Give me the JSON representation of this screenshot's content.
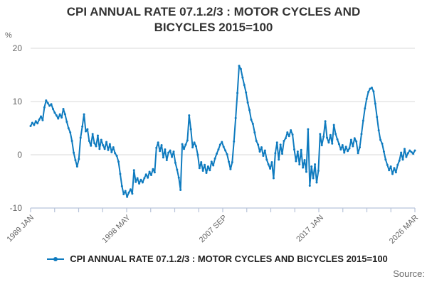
{
  "title": "CPI ANNUAL RATE 07.1.2/3 : MOTOR CYCLES AND BICYCLES 2015=100",
  "unit_label": "%",
  "source_label": "Source:",
  "legend": {
    "label": "CPI ANNUAL RATE 07.1.2/3 : MOTOR CYCLES AND BICYCLES 2015=100"
  },
  "colors": {
    "line": "#0f7bbf",
    "grid": "#d9d9d9",
    "axis": "#b7c3d9",
    "tick_label": "#666666",
    "title_text": "#333333"
  },
  "chart_data": {
    "type": "line",
    "title": "CPI ANNUAL RATE 07.1.2/3 : MOTOR CYCLES AND BICYCLES 2015=100",
    "ylabel": "%",
    "ylim": [
      -10,
      20
    ],
    "yticks": [
      -10,
      0,
      10,
      20
    ],
    "grid": "horizontal",
    "legend_position": "bottom",
    "x_tick_labels": [
      "1989 JAN",
      "1998 MAY",
      "2007 SEP",
      "2017 JAN",
      "2026 MAR"
    ],
    "x_tick_months": [
      0,
      112,
      224,
      336,
      446
    ],
    "x_minor_tick_intervals": 16,
    "total_months": 446,
    "sample_interval_months": 2,
    "x_start": "1989 JAN",
    "x_end": "2026 MAR",
    "series_name": "CPI ANNUAL RATE 07.1.2/3 : MOTOR CYCLES AND BICYCLES 2015=100",
    "values": [
      5.4,
      6.0,
      5.6,
      6.3,
      5.9,
      6.6,
      7.2,
      6.5,
      8.9,
      10.2,
      9.7,
      9.2,
      9.5,
      8.6,
      7.9,
      7.4,
      6.8,
      7.6,
      7.0,
      8.6,
      7.6,
      6.2,
      5.0,
      4.2,
      2.6,
      0.4,
      -1.0,
      -2.2,
      -0.8,
      3.2,
      5.3,
      7.6,
      4.4,
      4.8,
      2.6,
      1.7,
      3.9,
      2.2,
      1.6,
      3.6,
      1.1,
      2.8,
      1.8,
      1.1,
      2.4,
      0.9,
      2.0,
      0.5,
      1.4,
      0.3,
      -0.2,
      -1.3,
      -3.6,
      -5.9,
      -7.4,
      -6.8,
      -7.9,
      -7.1,
      -6.5,
      -7.3,
      -2.9,
      -5.1,
      -4.4,
      -5.4,
      -4.7,
      -5.2,
      -4.4,
      -3.7,
      -4.3,
      -3.2,
      -3.8,
      -2.7,
      -3.3,
      1.3,
      2.3,
      0.7,
      1.8,
      -0.5,
      1.0,
      -1.0,
      0.4,
      0.8,
      -0.4,
      0.6,
      -1.5,
      -2.8,
      -4.3,
      -6.6,
      2.0,
      1.1,
      1.9,
      2.7,
      7.4,
      4.8,
      1.4,
      2.3,
      1.6,
      0.0,
      -2.5,
      -1.4,
      -3.0,
      -1.9,
      -3.4,
      -2.2,
      -2.9,
      -1.3,
      -2.0,
      -0.7,
      0.2,
      1.0,
      1.9,
      2.4,
      1.5,
      0.8,
      0.1,
      -1.3,
      -2.7,
      -1.4,
      2.5,
      6.9,
      11.6,
      16.7,
      16.1,
      14.5,
      13.1,
      11.7,
      9.8,
      8.4,
      6.6,
      5.8,
      4.2,
      2.6,
      1.9,
      0.6,
      1.4,
      -0.2,
      0.8,
      -0.9,
      -1.8,
      -2.6,
      -1.4,
      -4.4,
      0.3,
      2.3,
      -0.9,
      1.9,
      0.2,
      2.6,
      3.1,
      4.2,
      3.5,
      4.6,
      3.8,
      1.0,
      -1.2,
      0.6,
      -1.8,
      0.9,
      -2.4,
      -1.0,
      -3.2,
      4.8,
      -5.8,
      -2.2,
      -4.4,
      -1.8,
      -5.2,
      -3.0,
      3.9,
      1.8,
      3.4,
      6.3,
      3.2,
      2.3,
      3.7,
      2.1,
      5.6,
      3.9,
      2.9,
      2.0,
      1.0,
      1.8,
      0.4,
      1.5,
      0.7,
      1.2,
      2.8,
      1.6,
      3.1,
      2.5,
      0.3,
      1.4,
      3.9,
      6.4,
      8.7,
      10.5,
      11.8,
      12.4,
      12.6,
      11.9,
      9.6,
      7.1,
      4.6,
      2.8,
      2.1,
      0.6,
      -0.9,
      -1.9,
      -2.9,
      -2.2,
      -3.6,
      -2.5,
      -3.3,
      -1.9,
      -1.1,
      0.4,
      -0.9,
      1.1,
      -0.4,
      0.3,
      0.8,
      0.5,
      0.2,
      0.8
    ]
  }
}
